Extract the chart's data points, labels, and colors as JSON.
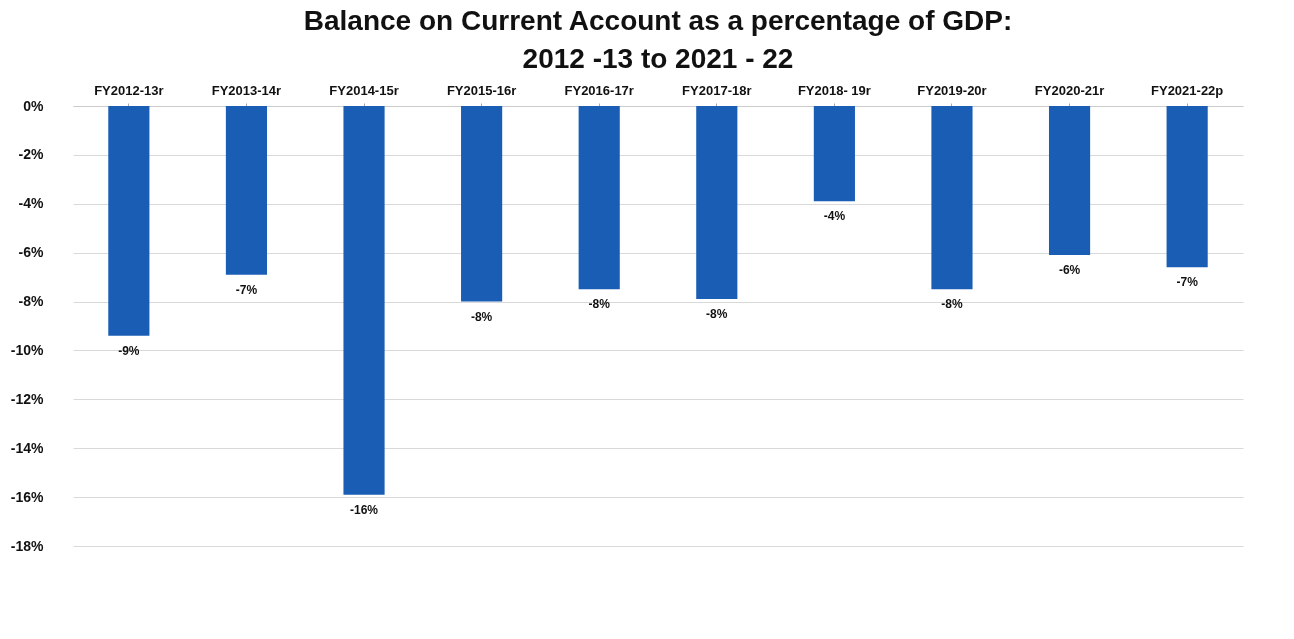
{
  "chart_data": {
    "type": "bar",
    "title": "Balance on Current Account as a percentage of GDP:\n2012 -13 to 2021 - 22",
    "categories": [
      "FY2012-13r",
      "FY2013-14r",
      "FY2014-15r",
      "FY2015-16r",
      "FY2016-17r",
      "FY2017-18r",
      "FY2018- 19r",
      "FY2019-20r",
      "FY2020-21r",
      "FY2021-22p"
    ],
    "values": [
      -9.4,
      -6.9,
      -15.9,
      -8.0,
      -7.5,
      -7.9,
      -3.9,
      -7.5,
      -6.1,
      -6.6
    ],
    "value_labels": [
      "-9%",
      "-7%",
      "-16%",
      "-8%",
      "-8%",
      "-8%",
      "-4%",
      "-8%",
      "-6%",
      "-7%"
    ],
    "color": "#1a5db5",
    "ylim": [
      -18,
      0
    ],
    "yticks": [
      {
        "value": 0,
        "label": "0%"
      },
      {
        "value": -2,
        "label": "-2%"
      },
      {
        "value": -4,
        "label": "-4%"
      },
      {
        "value": -6,
        "label": "-6%"
      },
      {
        "value": -8,
        "label": "-8%"
      },
      {
        "value": -10,
        "label": "-10%"
      },
      {
        "value": -12,
        "label": "-12%"
      },
      {
        "value": -14,
        "label": "-14%"
      },
      {
        "value": -16,
        "label": "-16%"
      },
      {
        "value": -18,
        "label": "-18%"
      }
    ],
    "grid": "y"
  }
}
